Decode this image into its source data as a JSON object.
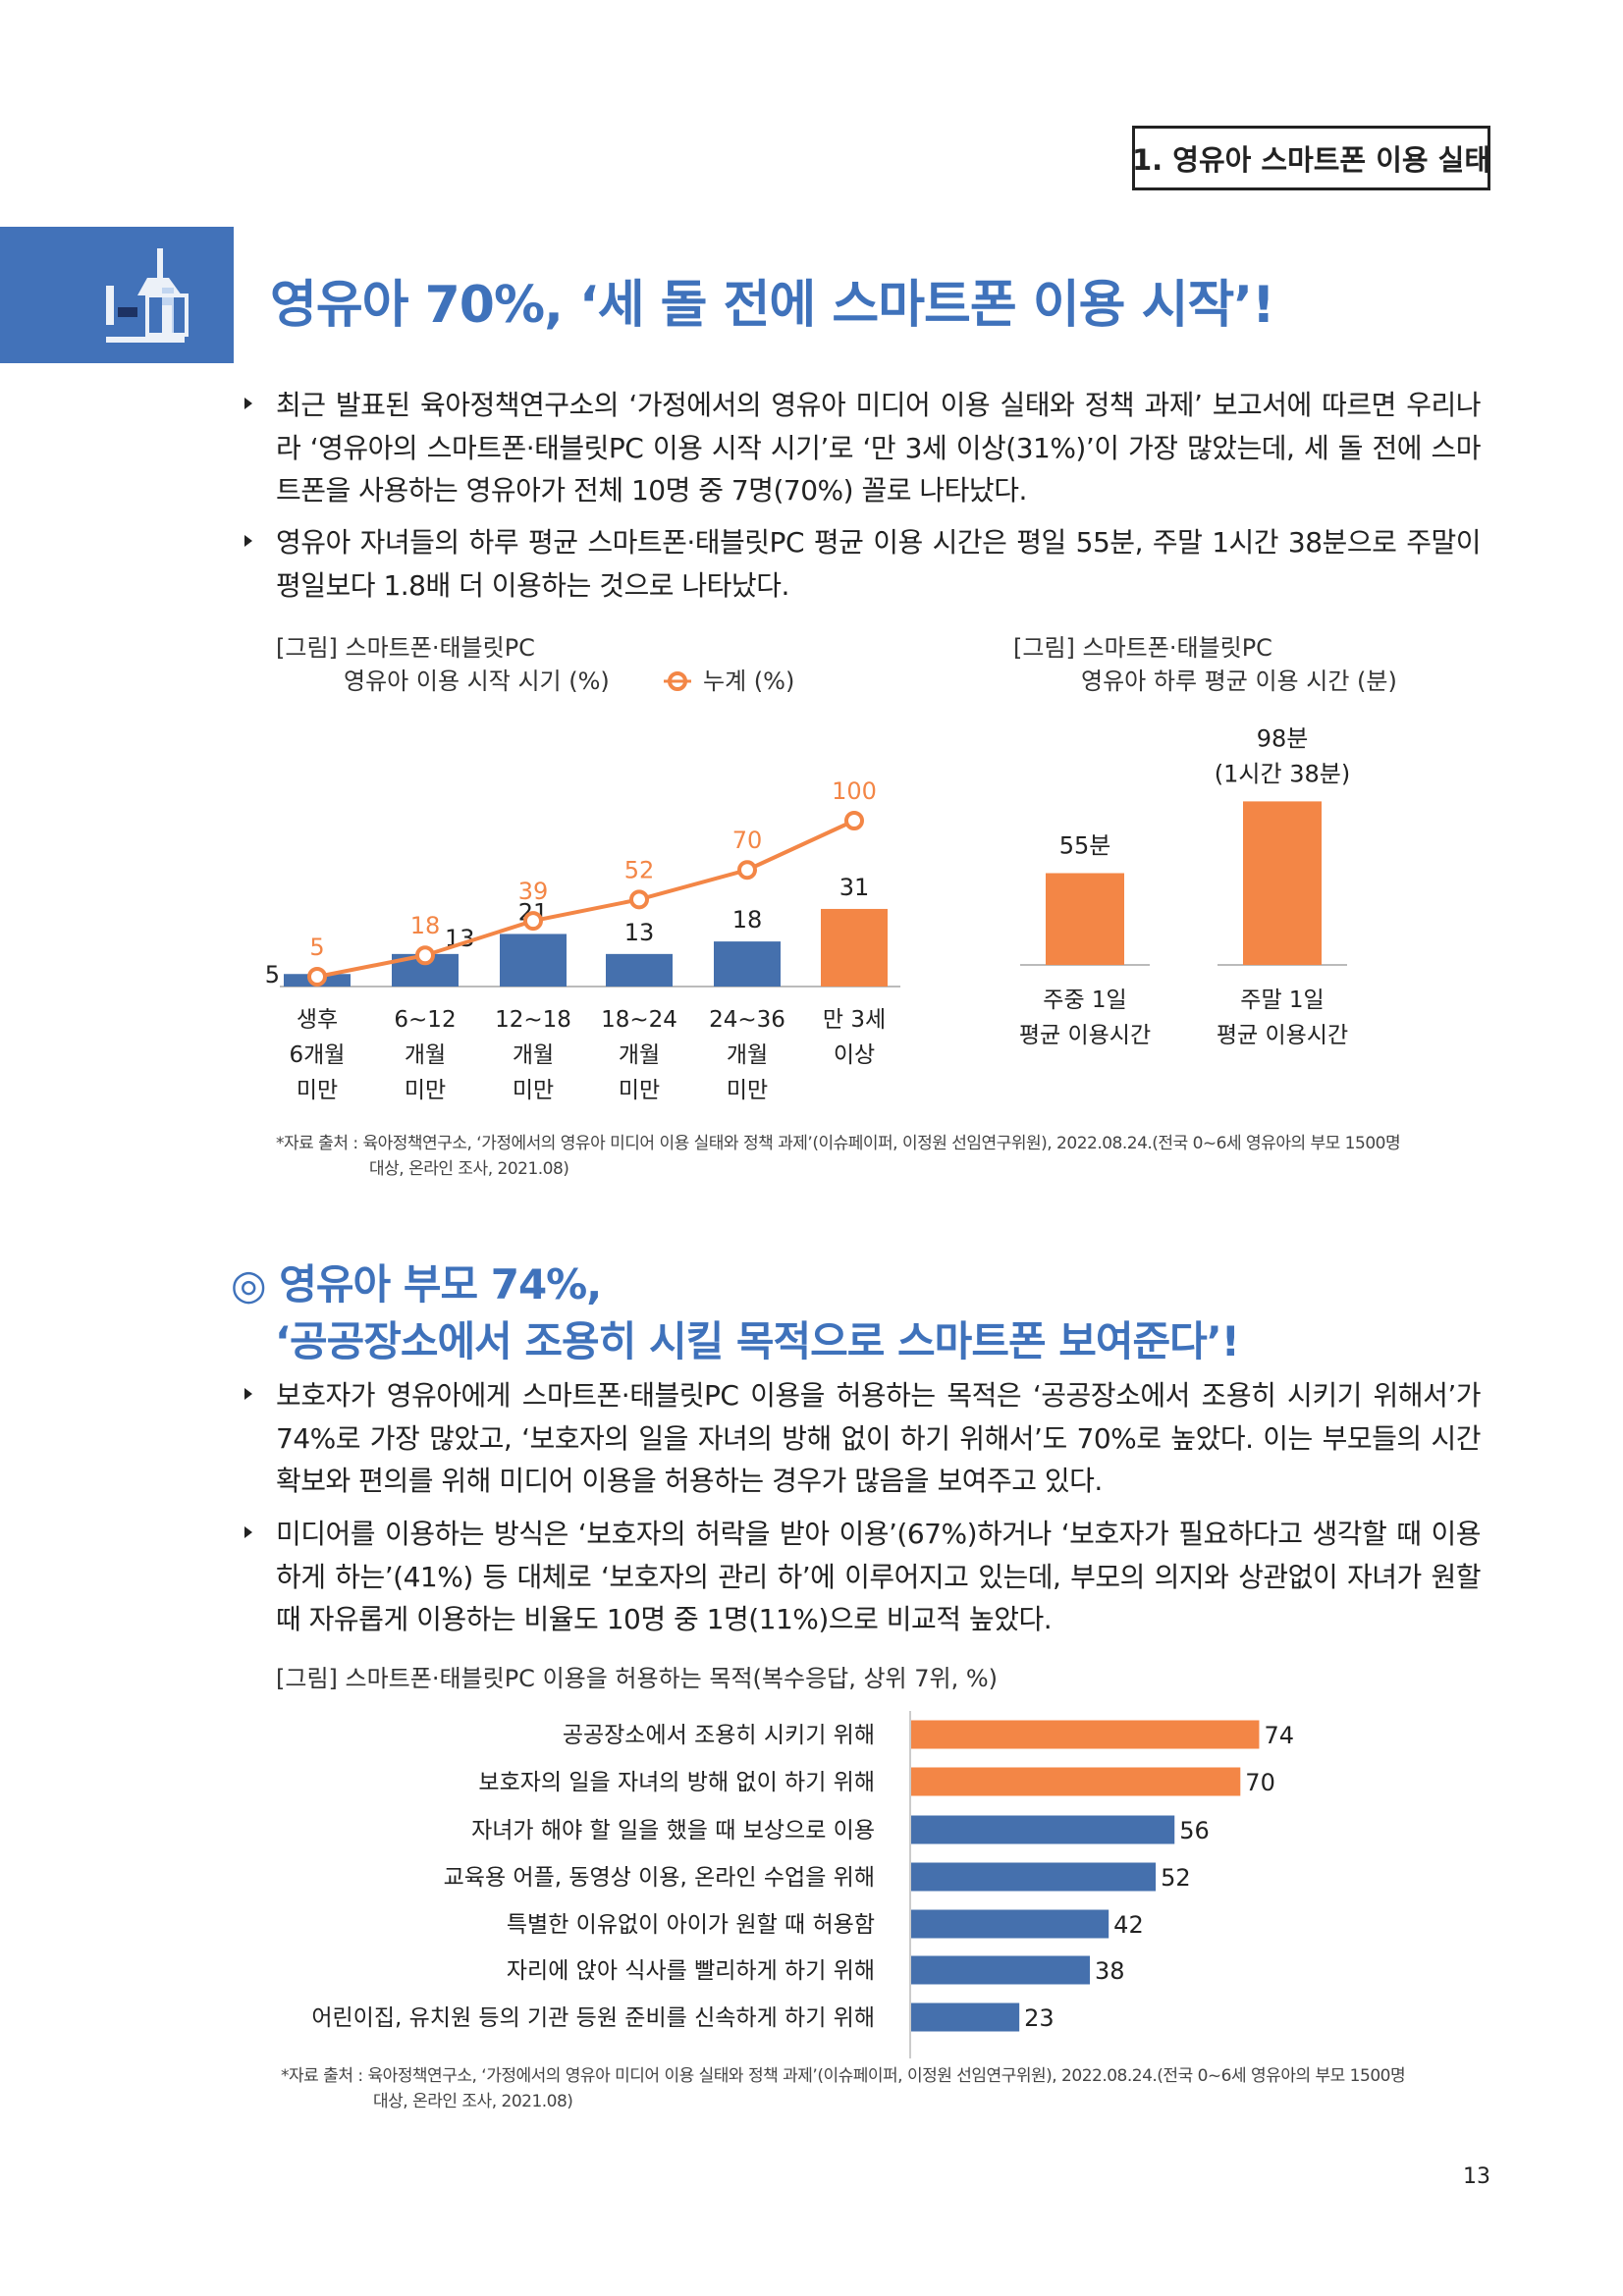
{
  "header": {
    "section": "1. 영유아 스마트폰 이용 실태"
  },
  "title": "영유아 70%, ‘세 돌 전에 스마트폰 이용 시작’!",
  "bullets1": [
    "최근 발표된 육아정책연구소의 ‘가정에서의 영유아 미디어 이용 실태와 정책 과제’ 보고서에 따르면 우리나라 ‘영유아의 스마트폰·태블릿PC 이용 시작 시기’로 ‘만 3세 이상(31%)’이 가장 많았는데, 세 돌 전에 스마트폰을 사용하는 영유아가 전체 10명 중 7명(70%) 꼴로 나타났다.",
    "영유아 자녀들의 하루 평균 스마트폰·태블릿PC 평균 이용 시간은 평일 55분, 주말 1시간 38분으로 주말이 평일보다 1.8배 더 이용하는 것으로 나타났다."
  ],
  "chart1_title": [
    "[그림] 스마트폰·태블릿PC",
    "영유아 이용 시작 시기 (%)"
  ],
  "chart2_title": [
    "[그림] 스마트폰·태블릿PC",
    "영유아 하루 평균 이용 시간 (분)"
  ],
  "source": [
    "*자료 출처 : 육아정책연구소, ‘가정에서의 영유아 미디어 이용 실태와 정책 과제’(이슈페이퍼, 이정원 선임연구위원), 2022.08.24.(전국 0~6세 영유아의 부모 1500명",
    "대상, 온라인 조사, 2021.08)"
  ],
  "section2": {
    "title_line1": "영유아 부모 74%,",
    "title_line2": "‘공공장소에서 조용히 시킬 목적으로 스마트폰 보여준다’!",
    "marker": "◎"
  },
  "bullets2": [
    "보호자가 영유아에게 스마트폰·태블릿PC 이용을 허용하는 목적은 ‘공공장소에서 조용히 시키기 위해서’가 74%로 가장 많았고, ‘보호자의 일을 자녀의 방해 없이 하기 위해서’도 70%로 높았다. 이는 부모들의 시간 확보와 편의를 위해 미디어 이용을 허용하는 경우가 많음을 보여주고 있다.",
    "미디어를 이용하는 방식은 ‘보호자의 허락을 받아 이용’(67%)하거나 ‘보호자가 필요하다고 생각할 때 이용하게 하는’(41%) 등 대체로 ‘보호자의 관리 하’에 이루어지고 있는데, 부모의 의지와 상관없이 자녀가 원할 때 자유롭게 이용하는 비율도 10명 중 1명(11%)으로 비교적 높았다."
  ],
  "chart3_title": "[그림] 스마트폰·태블릿PC 이용을 허용하는 목적(복수응답, 상위 7위, %)",
  "page_number": "13",
  "colors": {
    "blue": "#4570ad",
    "orange": "#f38646",
    "title": "#3f72bb"
  },
  "chart_data": [
    {
      "type": "bar",
      "title": "스마트폰·태블릿PC 영유아 이용 시작 시기 (%)",
      "categories": [
        [
          "생후",
          "6개월",
          "미만"
        ],
        [
          "6~12",
          "개월",
          "미만"
        ],
        [
          "12~18",
          "개월",
          "미만"
        ],
        [
          "18~24",
          "개월",
          "미만"
        ],
        [
          "24~36",
          "개월",
          "미만"
        ],
        [
          "만 3세",
          "이상"
        ]
      ],
      "series": [
        {
          "name": "이용 시작 시기",
          "type": "bar",
          "values": [
            5,
            13,
            21,
            13,
            18,
            31
          ]
        },
        {
          "name": "누계 (%)",
          "type": "line",
          "values": [
            5,
            18,
            39,
            52,
            70,
            100
          ]
        }
      ],
      "legend": "누계 (%)",
      "highlight_index": 5
    },
    {
      "type": "bar",
      "title": "스마트폰·태블릿PC 영유아 하루 평균 이용 시간 (분)",
      "categories": [
        [
          "주중 1일",
          "평균 이용시간"
        ],
        [
          "주말 1일",
          "평균 이용시간"
        ]
      ],
      "values": [
        55,
        98
      ],
      "labels": [
        [
          "55분"
        ],
        [
          "98분",
          "(1시간 38분)"
        ]
      ]
    },
    {
      "type": "bar",
      "orientation": "horizontal",
      "title": "스마트폰·태블릿PC 이용을 허용하는 목적(복수응답, 상위 7위, %)",
      "categories": [
        "공공장소에서 조용히 시키기 위해",
        "보호자의 일을 자녀의 방해 없이 하기 위해",
        "자녀가 해야 할 일을 했을 때 보상으로 이용",
        "교육용 어플, 동영상 이용, 온라인 수업을 위해",
        "특별한 이유없이 아이가 원할 때 허용함",
        "자리에 앉아 식사를 빨리하게 하기 위해",
        "어린이집, 유치원 등의 기관 등원 준비를 신속하게 하기 위해"
      ],
      "values": [
        74,
        70,
        56,
        52,
        42,
        38,
        23
      ],
      "highlight_count": 2
    }
  ]
}
